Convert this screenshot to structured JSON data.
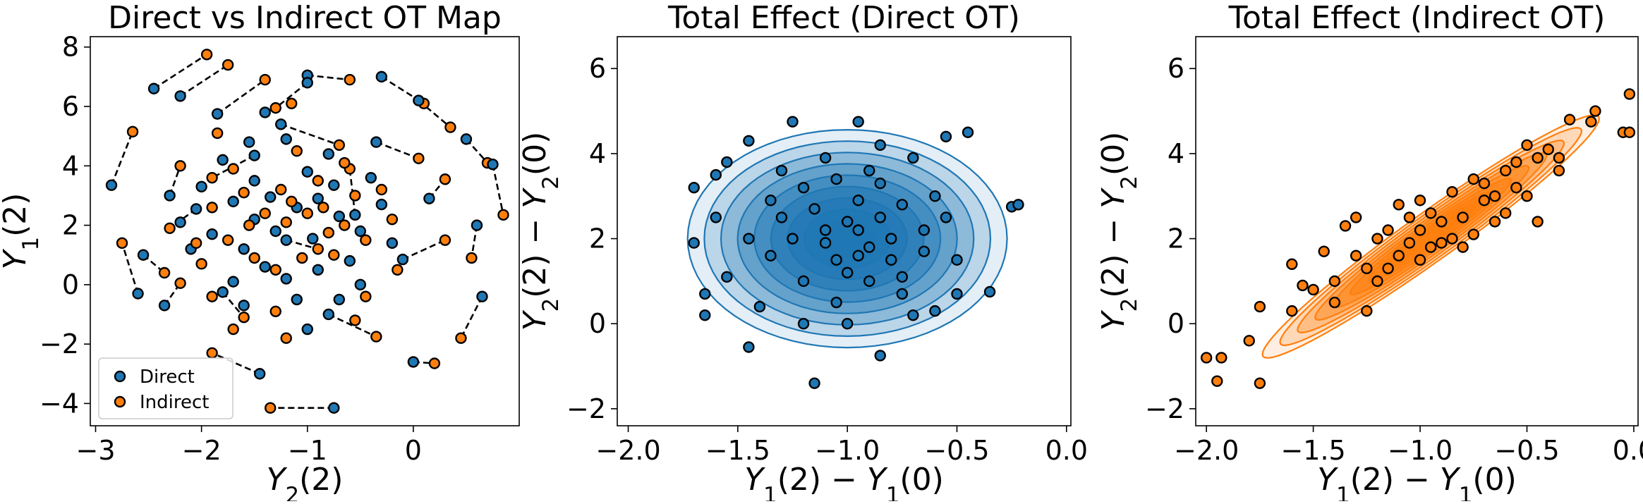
{
  "chart_data": [
    {
      "type": "scatter",
      "title": "Direct vs Indirect OT Map",
      "xlabel": "Y_2(2)",
      "ylabel": "Y_1(2)",
      "xlim": [
        -3.05,
        1.0
      ],
      "ylim": [
        -4.75,
        8.35
      ],
      "xticks": [
        -3,
        -2,
        -1,
        0
      ],
      "yticks": [
        -4,
        -2,
        0,
        2,
        4,
        6,
        8
      ],
      "xtick_labels": [
        "−3",
        "−2",
        "−1",
        "0"
      ],
      "ytick_labels": [
        "−4",
        "−2",
        "0",
        "2",
        "4",
        "6",
        "8"
      ],
      "grid": false,
      "legend": "lower-left",
      "legend_entries": [
        "Direct",
        "Indirect"
      ],
      "connectors": "dashed lines pair each Direct point with its Indirect point",
      "colors": {
        "direct": "#1f77b4",
        "indirect": "#ff7f0e"
      },
      "pairs": [
        [
          -1.0,
          7.05,
          -0.6,
          6.9
        ],
        [
          -0.3,
          7.0,
          0.1,
          6.1
        ],
        [
          0.05,
          6.2,
          0.35,
          5.3
        ],
        [
          0.5,
          4.9,
          0.7,
          4.1
        ],
        [
          0.75,
          4.05,
          0.85,
          2.35
        ],
        [
          0.6,
          2.0,
          0.55,
          0.9
        ],
        [
          0.65,
          -0.4,
          0.45,
          -1.8
        ],
        [
          0.0,
          -2.6,
          0.2,
          -2.65
        ],
        [
          -0.75,
          -4.15,
          -1.35,
          -4.15
        ],
        [
          -1.45,
          -3.0,
          -1.9,
          -2.3
        ],
        [
          -2.35,
          -0.7,
          -2.2,
          0.05
        ],
        [
          -2.6,
          -0.3,
          -2.75,
          1.4
        ],
        [
          -2.85,
          3.35,
          -2.65,
          5.15
        ],
        [
          -2.45,
          6.6,
          -1.95,
          7.75
        ],
        [
          -2.2,
          6.35,
          -1.75,
          7.4
        ],
        [
          -1.85,
          5.75,
          -1.4,
          6.9
        ],
        [
          -1.0,
          6.8,
          -1.3,
          5.95
        ],
        [
          -1.5,
          4.35,
          -1.9,
          3.6
        ],
        [
          -1.2,
          1.5,
          -0.9,
          1.2
        ],
        [
          -0.55,
          2.35,
          -0.6,
          3.9
        ],
        [
          -0.1,
          0.85,
          0.3,
          1.5
        ],
        [
          -0.8,
          -1.0,
          -0.35,
          -1.75
        ],
        [
          -1.8,
          -0.25,
          -1.6,
          -1.1
        ],
        [
          -2.3,
          3.0,
          -2.2,
          4.0
        ],
        [
          0.15,
          2.9,
          0.3,
          3.55
        ],
        [
          -2.05,
          2.55,
          -2.3,
          1.9
        ],
        [
          -1.25,
          5.4,
          -0.7,
          4.7
        ],
        [
          -0.35,
          4.8,
          0.05,
          4.25
        ],
        [
          -2.55,
          1.0,
          -2.35,
          0.4
        ]
      ],
      "extra_points": {
        "direct": [
          [
            -2.0,
            3.3
          ],
          [
            -1.7,
            2.8
          ],
          [
            -1.5,
            2.2
          ],
          [
            -1.3,
            1.8
          ],
          [
            -1.1,
            2.6
          ],
          [
            -0.9,
            2.9
          ],
          [
            -0.7,
            2.3
          ],
          [
            -0.5,
            1.8
          ],
          [
            -1.6,
            1.2
          ],
          [
            -1.4,
            0.6
          ],
          [
            -1.2,
            0.2
          ],
          [
            -0.9,
            0.5
          ],
          [
            -0.6,
            0.8
          ],
          [
            -1.8,
            4.2
          ],
          [
            -1.5,
            3.5
          ],
          [
            -1.0,
            3.8
          ],
          [
            -0.8,
            4.4
          ],
          [
            -1.2,
            4.9
          ],
          [
            -1.7,
            0.1
          ],
          [
            -1.1,
            -0.5
          ],
          [
            -0.5,
            0.0
          ],
          [
            -0.3,
            2.7
          ],
          [
            -1.9,
            1.7
          ],
          [
            -2.2,
            2.1
          ],
          [
            -1.35,
            2.95
          ],
          [
            -0.95,
            1.55
          ],
          [
            -0.75,
            3.35
          ],
          [
            -1.55,
            4.8
          ],
          [
            -0.4,
            3.6
          ],
          [
            -2.1,
            1.2
          ],
          [
            -1.0,
            -1.5
          ],
          [
            -1.6,
            -0.7
          ],
          [
            -0.7,
            -0.5
          ],
          [
            -0.2,
            1.4
          ],
          [
            -1.4,
            5.8
          ]
        ],
        "indirect": [
          [
            -1.9,
            2.6
          ],
          [
            -1.6,
            3.1
          ],
          [
            -1.4,
            2.4
          ],
          [
            -1.2,
            2.1
          ],
          [
            -1.0,
            2.4
          ],
          [
            -0.85,
            2.6
          ],
          [
            -0.65,
            2.0
          ],
          [
            -0.45,
            1.5
          ],
          [
            -1.75,
            1.5
          ],
          [
            -1.5,
            0.9
          ],
          [
            -1.3,
            0.5
          ],
          [
            -1.05,
            0.9
          ],
          [
            -0.75,
            1.0
          ],
          [
            -1.7,
            3.9
          ],
          [
            -1.25,
            3.2
          ],
          [
            -0.9,
            3.5
          ],
          [
            -0.65,
            4.1
          ],
          [
            -1.1,
            4.5
          ],
          [
            -1.9,
            -0.4
          ],
          [
            -1.3,
            -0.9
          ],
          [
            -0.45,
            -0.4
          ],
          [
            -0.2,
            2.2
          ],
          [
            -2.05,
            1.4
          ],
          [
            -1.55,
            2.0
          ],
          [
            -1.15,
            2.8
          ],
          [
            -0.8,
            1.75
          ],
          [
            -0.55,
            3.0
          ],
          [
            -1.85,
            5.1
          ],
          [
            -0.3,
            3.2
          ],
          [
            -2.0,
            0.7
          ],
          [
            -1.2,
            -1.8
          ],
          [
            -1.7,
            -1.5
          ],
          [
            -0.55,
            -1.2
          ],
          [
            -0.15,
            0.5
          ],
          [
            -1.15,
            6.1
          ]
        ]
      }
    },
    {
      "type": "scatter",
      "title": "Total Effect (Direct OT)",
      "xlabel": "Y_1(2) − Y_1(0)",
      "ylabel": "Y_2(2) − Y_2(0)",
      "xlim": [
        -2.05,
        0.02
      ],
      "ylim": [
        -2.4,
        6.75
      ],
      "xticks": [
        -2.0,
        -1.5,
        -1.0,
        -0.5,
        0.0
      ],
      "yticks": [
        -2,
        0,
        2,
        4,
        6
      ],
      "xtick_labels": [
        "−2.0",
        "−1.5",
        "−1.0",
        "−0.5",
        "0.0"
      ],
      "ytick_labels": [
        "−2",
        "0",
        "2",
        "4",
        "6"
      ],
      "grid": false,
      "overlay": "density contours (filled, blue), roughly circular",
      "color": "#1f77b4",
      "density_center": [
        -1.0,
        2.0
      ],
      "density_spread": [
        0.37,
        1.3
      ],
      "density_correlation": 0.0,
      "points": [
        [
          -1.7,
          3.2
        ],
        [
          -1.65,
          0.7
        ],
        [
          -1.55,
          3.8
        ],
        [
          -1.6,
          2.5
        ],
        [
          -1.45,
          2.0
        ],
        [
          -1.45,
          4.3
        ],
        [
          -1.45,
          -0.55
        ],
        [
          -1.3,
          2.5
        ],
        [
          -1.25,
          4.75
        ],
        [
          -1.2,
          1.0
        ],
        [
          -1.15,
          -1.4
        ],
        [
          -1.1,
          2.2
        ],
        [
          -1.05,
          1.5
        ],
        [
          -1.0,
          2.4
        ],
        [
          -0.95,
          4.75
        ],
        [
          -0.9,
          1.8
        ],
        [
          -0.85,
          3.3
        ],
        [
          -0.85,
          -0.75
        ],
        [
          -0.8,
          2.0
        ],
        [
          -0.75,
          1.1
        ],
        [
          -0.7,
          3.9
        ],
        [
          -0.65,
          2.2
        ],
        [
          -0.6,
          0.3
        ],
        [
          -0.55,
          4.4
        ],
        [
          -0.45,
          4.5
        ],
        [
          -0.5,
          1.5
        ],
        [
          -0.35,
          0.75
        ],
        [
          -0.25,
          2.75
        ],
        [
          -0.22,
          2.8
        ],
        [
          -1.35,
          1.6
        ],
        [
          -1.2,
          3.2
        ],
        [
          -1.05,
          0.5
        ],
        [
          -0.95,
          2.9
        ],
        [
          -0.9,
          1.0
        ],
        [
          -0.75,
          2.8
        ],
        [
          -0.7,
          0.2
        ],
        [
          -1.4,
          0.4
        ],
        [
          -1.1,
          3.9
        ],
        [
          -0.85,
          4.2
        ],
        [
          -0.6,
          3.0
        ],
        [
          -1.25,
          2.0
        ],
        [
          -1.0,
          1.2
        ],
        [
          -1.15,
          2.7
        ],
        [
          -0.95,
          2.2
        ],
        [
          -0.8,
          1.5
        ],
        [
          -1.3,
          3.6
        ],
        [
          -1.55,
          1.1
        ],
        [
          -0.65,
          1.7
        ],
        [
          -0.55,
          2.5
        ],
        [
          -1.05,
          3.4
        ],
        [
          -1.2,
          0.0
        ],
        [
          -0.9,
          3.6
        ],
        [
          -1.6,
          3.5
        ],
        [
          -1.0,
          0.0
        ],
        [
          -0.75,
          0.7
        ],
        [
          -1.1,
          1.9
        ],
        [
          -0.95,
          1.6
        ],
        [
          -1.35,
          2.9
        ],
        [
          -0.85,
          2.5
        ],
        [
          -1.7,
          1.9
        ],
        [
          -1.65,
          0.2
        ],
        [
          -0.5,
          0.7
        ]
      ]
    },
    {
      "type": "scatter",
      "title": "Total Effect (Indirect OT)",
      "xlabel": "Y_1(2) − Y_1(0)",
      "ylabel": "Y_2(2) − Y_2(0)",
      "xlim": [
        -2.05,
        0.02
      ],
      "ylim": [
        -2.4,
        6.75
      ],
      "xticks": [
        -2.0,
        -1.5,
        -1.0,
        -0.5,
        0.0
      ],
      "yticks": [
        -2,
        0,
        2,
        4,
        6
      ],
      "xtick_labels": [
        "−2.0",
        "−1.5",
        "−1.0",
        "−0.5",
        "0.0"
      ],
      "ytick_labels": [
        "−2",
        "0",
        "2",
        "4",
        "6"
      ],
      "grid": false,
      "overlay": "density contours (filled, orange), elongated along a positive diagonal",
      "color": "#ff7f0e",
      "density_center": [
        -0.95,
        2.05
      ],
      "density_spread": [
        0.4,
        1.45
      ],
      "density_correlation": 0.97,
      "points": [
        [
          -2.0,
          -0.8
        ],
        [
          -1.95,
          -1.35
        ],
        [
          -1.93,
          -0.8
        ],
        [
          -1.8,
          -0.4
        ],
        [
          -1.75,
          -1.4
        ],
        [
          -1.75,
          0.4
        ],
        [
          -1.6,
          1.4
        ],
        [
          -1.6,
          0.3
        ],
        [
          -1.5,
          0.8
        ],
        [
          -1.45,
          1.7
        ],
        [
          -1.4,
          1.0
        ],
        [
          -1.35,
          2.3
        ],
        [
          -1.3,
          1.6
        ],
        [
          -1.25,
          0.3
        ],
        [
          -1.2,
          2.0
        ],
        [
          -1.15,
          1.3
        ],
        [
          -1.1,
          2.8
        ],
        [
          -1.05,
          1.9
        ],
        [
          -1.0,
          2.2
        ],
        [
          -0.95,
          2.6
        ],
        [
          -0.9,
          1.9
        ],
        [
          -0.85,
          3.1
        ],
        [
          -0.8,
          2.5
        ],
        [
          -0.75,
          3.4
        ],
        [
          -0.7,
          2.9
        ],
        [
          -0.65,
          2.4
        ],
        [
          -0.6,
          3.6
        ],
        [
          -0.55,
          3.2
        ],
        [
          -0.5,
          4.2
        ],
        [
          -0.45,
          3.9
        ],
        [
          -0.4,
          4.1
        ],
        [
          -0.35,
          3.6
        ],
        [
          -0.3,
          4.8
        ],
        [
          -0.2,
          4.75
        ],
        [
          -0.18,
          5.0
        ],
        [
          -0.05,
          4.5
        ],
        [
          -0.02,
          4.5
        ],
        [
          -0.02,
          5.4
        ],
        [
          -1.55,
          0.9
        ],
        [
          -1.4,
          0.5
        ],
        [
          -1.3,
          2.5
        ],
        [
          -1.2,
          1.0
        ],
        [
          -1.1,
          1.6
        ],
        [
          -1.0,
          1.5
        ],
        [
          -0.9,
          2.4
        ],
        [
          -0.8,
          1.8
        ],
        [
          -0.7,
          3.3
        ],
        [
          -0.6,
          2.6
        ],
        [
          -0.5,
          3.0
        ],
        [
          -0.45,
          2.4
        ],
        [
          -1.0,
          2.9
        ],
        [
          -0.85,
          2.0
        ],
        [
          -1.15,
          2.2
        ],
        [
          -0.75,
          2.1
        ],
        [
          -0.65,
          3.0
        ],
        [
          -0.95,
          1.8
        ],
        [
          -1.05,
          2.5
        ],
        [
          -0.55,
          3.8
        ],
        [
          -1.25,
          1.3
        ],
        [
          -0.35,
          3.9
        ]
      ]
    }
  ]
}
